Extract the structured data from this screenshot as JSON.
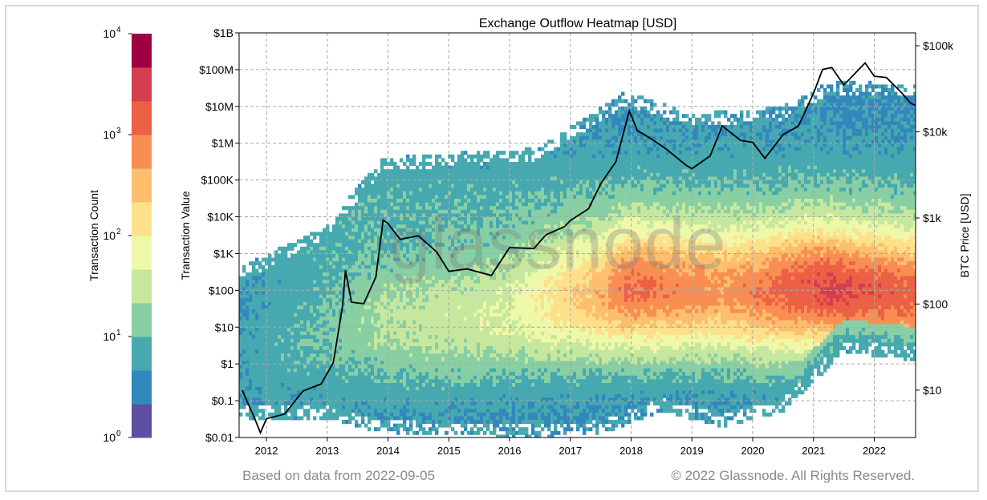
{
  "chart_data": {
    "type": "heatmap",
    "title": "Exchange Outflow Heatmap [USD]",
    "ylabel": "Transaction Value",
    "y2label": "BTC Price [USD]",
    "colorbar_label": "Transaction Count",
    "x_ticks": [
      "2012",
      "2013",
      "2014",
      "2015",
      "2016",
      "2017",
      "2018",
      "2019",
      "2020",
      "2021",
      "2022"
    ],
    "y_ticks": [
      "$0.01",
      "$0.1",
      "$1",
      "$10",
      "$100",
      "$1K",
      "$10K",
      "$100K",
      "$1M",
      "$10M",
      "$100M",
      "$1B"
    ],
    "y2_ticks": [
      "$10",
      "$100",
      "$1k",
      "$10k",
      "$100k"
    ],
    "colorbar_ticks": [
      "10^0",
      "10^1",
      "10^2",
      "10^3",
      "10^4"
    ],
    "colorbar_colors": [
      "#5e4fa2",
      "#3288bd",
      "#46a9b0",
      "#88cfa4",
      "#c6e89e",
      "#eef8a8",
      "#fee08b",
      "#fdbe6e",
      "#f98e52",
      "#ec6145",
      "#d53e4f",
      "#9e0142"
    ],
    "x_range": [
      2011.55,
      2022.68
    ],
    "y_range_log10_usd": [
      -2,
      9
    ],
    "y2_range_log10_usd": [
      0.45,
      5.15
    ],
    "grid": true,
    "btc_price_series": {
      "name": "BTC Price [USD]",
      "color": "#000000",
      "x": [
        2011.6,
        2011.8,
        2011.9,
        2012.0,
        2012.3,
        2012.6,
        2012.9,
        2013.1,
        2013.25,
        2013.3,
        2013.4,
        2013.6,
        2013.8,
        2013.92,
        2014.0,
        2014.2,
        2014.5,
        2014.8,
        2015.0,
        2015.3,
        2015.7,
        2016.0,
        2016.4,
        2016.6,
        2016.9,
        2017.0,
        2017.3,
        2017.5,
        2017.75,
        2017.97,
        2018.1,
        2018.3,
        2018.6,
        2018.9,
        2019.0,
        2019.3,
        2019.5,
        2019.8,
        2020.0,
        2020.2,
        2020.5,
        2020.75,
        2021.0,
        2021.15,
        2021.3,
        2021.5,
        2021.85,
        2022.0,
        2022.2,
        2022.45,
        2022.6,
        2022.68
      ],
      "y": [
        10,
        5,
        3,
        5,
        5,
        10,
        12,
        20,
        100,
        230,
        110,
        100,
        200,
        1000,
        800,
        600,
        600,
        400,
        250,
        240,
        230,
        430,
        450,
        650,
        750,
        1000,
        1200,
        2600,
        4500,
        17000,
        11000,
        8000,
        6500,
        4000,
        3700,
        5500,
        11000,
        8500,
        7200,
        5000,
        9500,
        11000,
        30000,
        50000,
        58000,
        35000,
        61000,
        47000,
        40000,
        30000,
        21000,
        20000
      ]
    }
  },
  "watermark": "glassnode",
  "footer": {
    "left": "Based on data from 2022-09-05",
    "right": "© 2022 Glassnode. All Rights Reserved."
  }
}
